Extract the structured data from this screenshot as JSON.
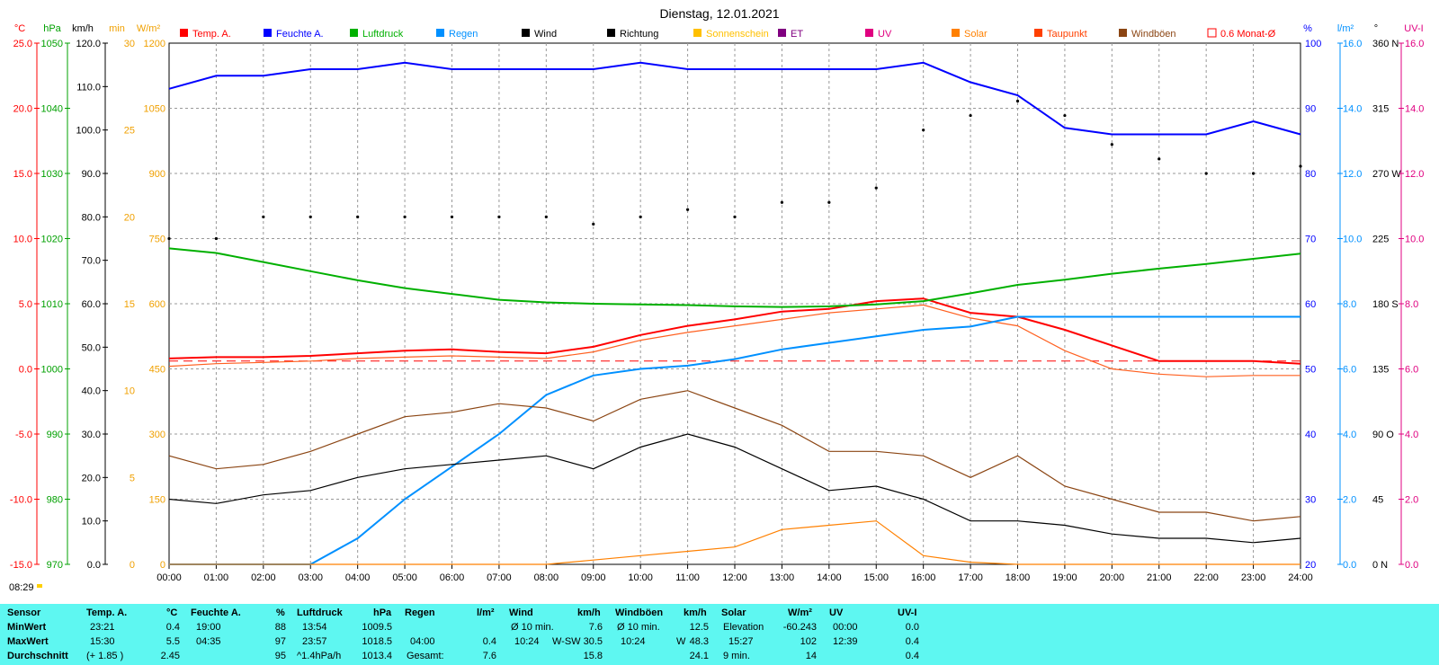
{
  "title": "Dienstag, 12.01.2021",
  "axes": {
    "temp": {
      "unit": "°C",
      "color": "#ff0000",
      "ticks": [
        "25.0",
        "20.0",
        "15.0",
        "10.0",
        "5.0",
        "0.0",
        "-5.0",
        "-10.0",
        "-15.0"
      ]
    },
    "press": {
      "unit": "hPa",
      "color": "#00a000",
      "ticks": [
        "1050",
        "1040",
        "1030",
        "1020",
        "1010",
        "1000",
        "990",
        "980",
        "970"
      ]
    },
    "wind": {
      "unit": "km/h",
      "color": "#000000",
      "ticks": [
        "120.0",
        "110.0",
        "100.0",
        "90.0",
        "80.0",
        "70.0",
        "60.0",
        "50.0",
        "40.0",
        "30.0",
        "20.0",
        "10.0",
        "0.0"
      ]
    },
    "sunmin": {
      "unit": "min",
      "color": "#f0a000",
      "ticks": [
        "30",
        "25",
        "20",
        "15",
        "10",
        "5",
        "0"
      ]
    },
    "solar": {
      "unit": "W/m²",
      "color": "#f0a000",
      "ticks": [
        "1200",
        "1050",
        "900",
        "750",
        "600",
        "450",
        "300",
        "150",
        "0"
      ]
    },
    "hum": {
      "unit": "%",
      "color": "#0000ff",
      "ticks": [
        "100",
        "90",
        "80",
        "70",
        "60",
        "50",
        "40",
        "30",
        "20"
      ]
    },
    "rain": {
      "unit": "l/m²",
      "color": "#0090ff",
      "ticks": [
        "16.0",
        "14.0",
        "12.0",
        "10.0",
        "8.0",
        "6.0",
        "4.0",
        "2.0",
        "0.0"
      ]
    },
    "dir": {
      "unit": "°",
      "color": "#000000",
      "ticks": [
        "360 N",
        "315",
        "270 W",
        "225",
        "180 S",
        "135",
        "90 O",
        "45",
        "0 N"
      ]
    },
    "uv": {
      "unit": "UV-I",
      "color": "#e00080",
      "ticks": [
        "16.0",
        "14.0",
        "12.0",
        "10.0",
        "8.0",
        "6.0",
        "4.0",
        "2.0",
        "0.0"
      ]
    }
  },
  "legend": [
    {
      "label": "Temp. A.",
      "color": "#ff0000",
      "type": "fill"
    },
    {
      "label": "Feuchte A.",
      "color": "#0000ff",
      "type": "fill"
    },
    {
      "label": "Luftdruck",
      "color": "#00b000",
      "type": "fill"
    },
    {
      "label": "Regen",
      "color": "#0090ff",
      "type": "fill"
    },
    {
      "label": "Wind",
      "color": "#000000",
      "type": "fill"
    },
    {
      "label": "Richtung",
      "color": "#000000",
      "type": "fill"
    },
    {
      "label": "Sonnenschein",
      "color": "#ffc000",
      "type": "fill"
    },
    {
      "label": "ET",
      "color": "#800080",
      "type": "fill"
    },
    {
      "label": "UV",
      "color": "#e00080",
      "type": "fill"
    },
    {
      "label": "Solar",
      "color": "#ff8000",
      "type": "fill"
    },
    {
      "label": "Taupunkt",
      "color": "#ff4000",
      "type": "fill"
    },
    {
      "label": "Windböen",
      "color": "#8b4513",
      "type": "fill"
    },
    {
      "label": "0.6 Monat-Ø",
      "color": "#ff0000",
      "type": "outline"
    }
  ],
  "xticks": [
    "00:00",
    "01:00",
    "02:00",
    "03:00",
    "04:00",
    "05:00",
    "06:00",
    "07:00",
    "08:00",
    "09:00",
    "10:00",
    "11:00",
    "12:00",
    "13:00",
    "14:00",
    "15:00",
    "16:00",
    "17:00",
    "18:00",
    "19:00",
    "20:00",
    "21:00",
    "22:00",
    "23:00",
    "24:00"
  ],
  "sunrise": "08:29",
  "chart_data": {
    "type": "line",
    "x": [
      0,
      1,
      2,
      3,
      4,
      5,
      6,
      7,
      8,
      9,
      10,
      11,
      12,
      13,
      14,
      15,
      16,
      17,
      18,
      19,
      20,
      21,
      22,
      23,
      24
    ],
    "series": [
      {
        "name": "Temp. A.",
        "axis": "°C",
        "values": [
          0.8,
          0.9,
          0.9,
          1.0,
          1.2,
          1.4,
          1.5,
          1.3,
          1.2,
          1.7,
          2.6,
          3.3,
          3.8,
          4.4,
          4.6,
          5.2,
          5.4,
          4.3,
          4.0,
          3.0,
          1.8,
          0.6,
          0.6,
          0.6,
          0.4
        ]
      },
      {
        "name": "Taupunkt",
        "axis": "°C",
        "values": [
          0.2,
          0.4,
          0.5,
          0.6,
          0.8,
          0.9,
          1.0,
          0.9,
          0.8,
          1.3,
          2.2,
          2.8,
          3.3,
          3.8,
          4.3,
          4.6,
          4.9,
          3.9,
          3.3,
          1.4,
          0.0,
          -0.4,
          -0.6,
          -0.5,
          -0.5
        ]
      },
      {
        "name": "Feuchte A.",
        "axis": "%",
        "values": [
          93,
          95,
          95,
          96,
          96,
          97,
          96,
          96,
          96,
          96,
          97,
          96,
          96,
          96,
          96,
          96,
          97,
          94,
          92,
          87,
          86,
          86,
          86,
          88,
          86
        ]
      },
      {
        "name": "Luftdruck",
        "axis": "hPa",
        "values": [
          1018.5,
          1017.8,
          1016.4,
          1015.0,
          1013.6,
          1012.4,
          1011.5,
          1010.6,
          1010.2,
          1010.0,
          1009.9,
          1009.8,
          1009.6,
          1009.5,
          1009.6,
          1009.9,
          1010.4,
          1011.6,
          1012.9,
          1013.7,
          1014.6,
          1015.4,
          1016.1,
          1016.9,
          1017.7
        ]
      },
      {
        "name": "Regen",
        "axis": "l/m²",
        "values": [
          0.0,
          0.0,
          0.0,
          0.0,
          0.8,
          2.0,
          3.0,
          4.0,
          5.2,
          5.8,
          6.0,
          6.1,
          6.3,
          6.6,
          6.8,
          7.0,
          7.2,
          7.3,
          7.6,
          7.6,
          7.6,
          7.6,
          7.6,
          7.6,
          7.6
        ]
      },
      {
        "name": "Wind",
        "axis": "km/h",
        "values": [
          15,
          14,
          16,
          17,
          20,
          22,
          23,
          24,
          25,
          22,
          27,
          30,
          27,
          22,
          17,
          18,
          15,
          10,
          10,
          9,
          7,
          6,
          6,
          5,
          6
        ]
      },
      {
        "name": "Windböen",
        "axis": "km/h",
        "values": [
          25,
          22,
          23,
          26,
          30,
          34,
          35,
          37,
          36,
          33,
          38,
          40,
          36,
          32,
          26,
          26,
          25,
          20,
          25,
          18,
          15,
          12,
          12,
          10,
          11
        ]
      },
      {
        "name": "Solar",
        "axis": "W/m²",
        "values": [
          0,
          0,
          0,
          0,
          0,
          0,
          0,
          0,
          0,
          10,
          20,
          30,
          40,
          80,
          90,
          100,
          20,
          5,
          0,
          0,
          0,
          0,
          0,
          0,
          0
        ]
      },
      {
        "name": "Richtung",
        "axis": "°",
        "values": [
          225,
          225,
          240,
          240,
          240,
          240,
          240,
          240,
          240,
          235,
          240,
          245,
          240,
          250,
          250,
          260,
          300,
          310,
          320,
          310,
          290,
          280,
          270,
          270,
          275
        ]
      }
    ],
    "xlabel": "",
    "ylabel": "°C"
  },
  "stats": {
    "labels": [
      "Sensor",
      "MinWert",
      "MaxWert",
      "Durchschnitt"
    ],
    "temp": {
      "header": "Temp. A.",
      "unit": "°C",
      "min_time": "23:21",
      "min_val": "0.4",
      "max_time": "15:30",
      "max_val": "5.5",
      "avg_note": "(+ 1.85 )",
      "avg_val": "2.45"
    },
    "hum": {
      "header": "Feuchte A.",
      "unit": "%",
      "min_time": "19:00",
      "min_val": "88",
      "max_time": "04:35",
      "max_val": "97",
      "avg_val": "95"
    },
    "press": {
      "header": "Luftdruck",
      "unit": "hPa",
      "min_time": "13:54",
      "min_val": "1009.5",
      "max_time": "23:57",
      "max_val": "1018.5",
      "avg_note": "^1.4hPa/h",
      "avg_val": "1013.4"
    },
    "rain": {
      "header": "Regen",
      "unit": "l/m²",
      "max_time": "04:00",
      "max_val": "0.4",
      "total_label": "Gesamt:",
      "total_val": "7.6"
    },
    "wind": {
      "header": "Wind",
      "unit": "km/h",
      "min_label": "Ø 10 min.",
      "min_val": "7.6",
      "max_time": "10:24",
      "max_dir": "W-SW",
      "max_val": "30.5",
      "avg_val": "15.8"
    },
    "gust": {
      "header": "Windböen",
      "unit": "km/h",
      "min_label": "Ø 10 min.",
      "min_val": "12.5",
      "max_time": "10:24",
      "max_dir": "W",
      "max_val": "48.3",
      "avg_val": "24.1"
    },
    "solar": {
      "header": "Solar",
      "unit": "W/m²",
      "min_label": "Elevation",
      "min_val": "-60.243",
      "max_time": "15:27",
      "max_val": "102",
      "avg_label": "9 min.",
      "avg_val": "14"
    },
    "uv": {
      "header": "UV",
      "unit": "UV-I",
      "min_time": "00:00",
      "min_val": "0.0",
      "max_time": "12:39",
      "max_val": "0.4",
      "avg_val": "0.4"
    }
  }
}
